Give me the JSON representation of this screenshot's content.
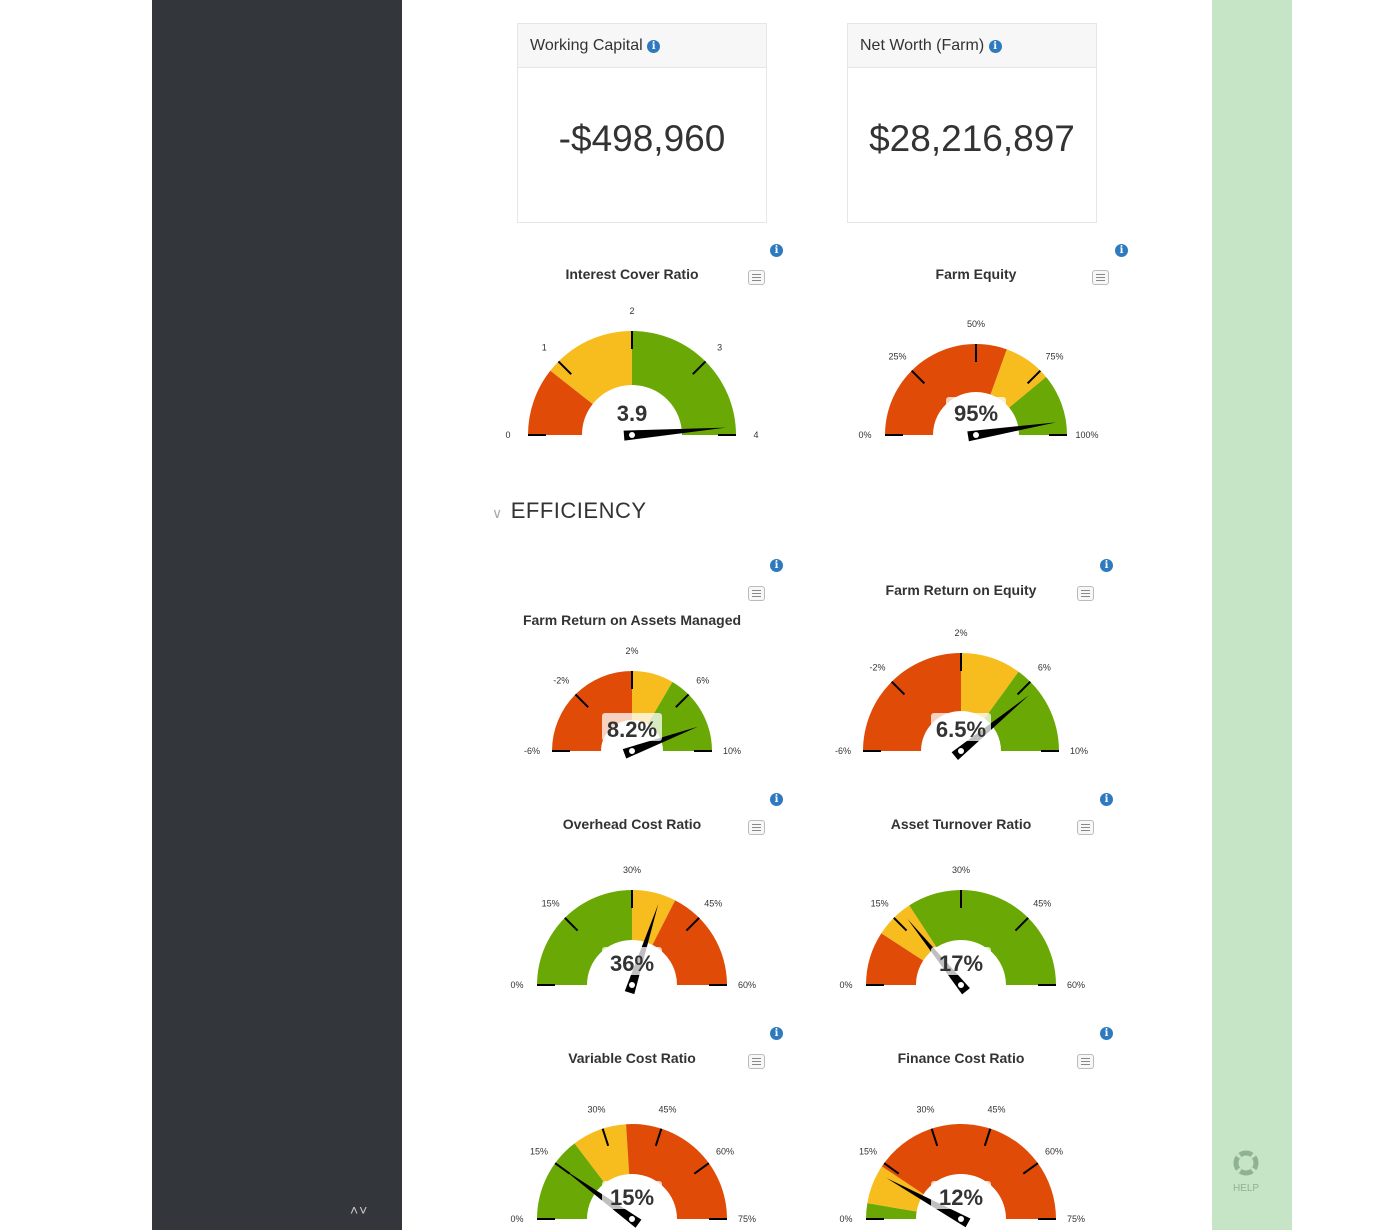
{
  "cards": [
    {
      "title": "Working Capital",
      "value": "-$498,960"
    },
    {
      "title": "Net Worth (Farm)",
      "value": "$28,216,897"
    }
  ],
  "section": {
    "title": "EFFICIENCY",
    "icon": "chevron-down-icon"
  },
  "help": {
    "label": "HELP",
    "icon": "lifebuoy-icon"
  },
  "colors": {
    "red": "#e04b08",
    "yellow": "#f7bc1e",
    "green": "#6aa905"
  },
  "gauges": [
    {
      "title": "Interest Cover Ratio",
      "min": 0,
      "max": 4,
      "value": 3.9,
      "display": "3.9",
      "ticks": [
        "0",
        "1",
        "2",
        "3",
        "4"
      ],
      "bands": [
        [
          0,
          0.85,
          "red"
        ],
        [
          0.85,
          2,
          "yellow"
        ],
        [
          2,
          4,
          "green"
        ]
      ]
    },
    {
      "title": "Farm Equity",
      "min": 0,
      "max": 100,
      "value": 95,
      "display": "95%",
      "ticks": [
        "0%",
        "25%",
        "50%",
        "75%",
        "100%"
      ],
      "bands": [
        [
          0,
          61,
          "red"
        ],
        [
          61,
          78,
          "yellow"
        ],
        [
          78,
          100,
          "green"
        ]
      ]
    },
    {
      "title": "Farm Return on Assets Managed",
      "min": -6,
      "max": 10,
      "value": 8.2,
      "display": "8.2%",
      "ticks": [
        "-6%",
        "-2%",
        "2%",
        "6%",
        "10%"
      ],
      "bands": [
        [
          -6,
          2,
          "red"
        ],
        [
          2,
          4.7,
          "yellow"
        ],
        [
          4.7,
          10,
          "green"
        ]
      ]
    },
    {
      "title": "Farm Return on Equity",
      "min": -6,
      "max": 10,
      "value": 6.5,
      "display": "6.5%",
      "ticks": [
        "-6%",
        "-2%",
        "2%",
        "6%",
        "10%"
      ],
      "bands": [
        [
          -6,
          2,
          "red"
        ],
        [
          2,
          5.2,
          "yellow"
        ],
        [
          5.2,
          10,
          "green"
        ]
      ]
    },
    {
      "title": "Overhead Cost Ratio",
      "min": 0,
      "max": 60,
      "value": 36,
      "display": "36%",
      "ticks": [
        "0%",
        "15%",
        "30%",
        "45%",
        "60%"
      ],
      "bands": [
        [
          0,
          30,
          "green"
        ],
        [
          30,
          39,
          "yellow"
        ],
        [
          39,
          60,
          "red"
        ]
      ]
    },
    {
      "title": "Asset Turnover Ratio",
      "min": 0,
      "max": 60,
      "value": 17,
      "display": "17%",
      "ticks": [
        "0%",
        "15%",
        "30%",
        "45%",
        "60%"
      ],
      "bands": [
        [
          0,
          11,
          "red"
        ],
        [
          11,
          19,
          "yellow"
        ],
        [
          19,
          60,
          "green"
        ]
      ]
    },
    {
      "title": "Variable Cost Ratio",
      "min": 0,
      "max": 75,
      "value": 15,
      "display": "15%",
      "ticks": [
        "0%",
        "15%",
        "30%",
        "45%",
        "60%",
        "75%"
      ],
      "bands": [
        [
          0,
          22,
          "green"
        ],
        [
          22,
          36,
          "yellow"
        ],
        [
          36,
          75,
          "red"
        ]
      ]
    },
    {
      "title": "Finance Cost Ratio",
      "min": 0,
      "max": 75,
      "value": 12,
      "display": "12%",
      "ticks": [
        "0%",
        "15%",
        "30%",
        "45%",
        "60%",
        "75%"
      ],
      "bands": [
        [
          0,
          4,
          "green"
        ],
        [
          4,
          14,
          "yellow"
        ],
        [
          14,
          75,
          "red"
        ]
      ]
    }
  ]
}
